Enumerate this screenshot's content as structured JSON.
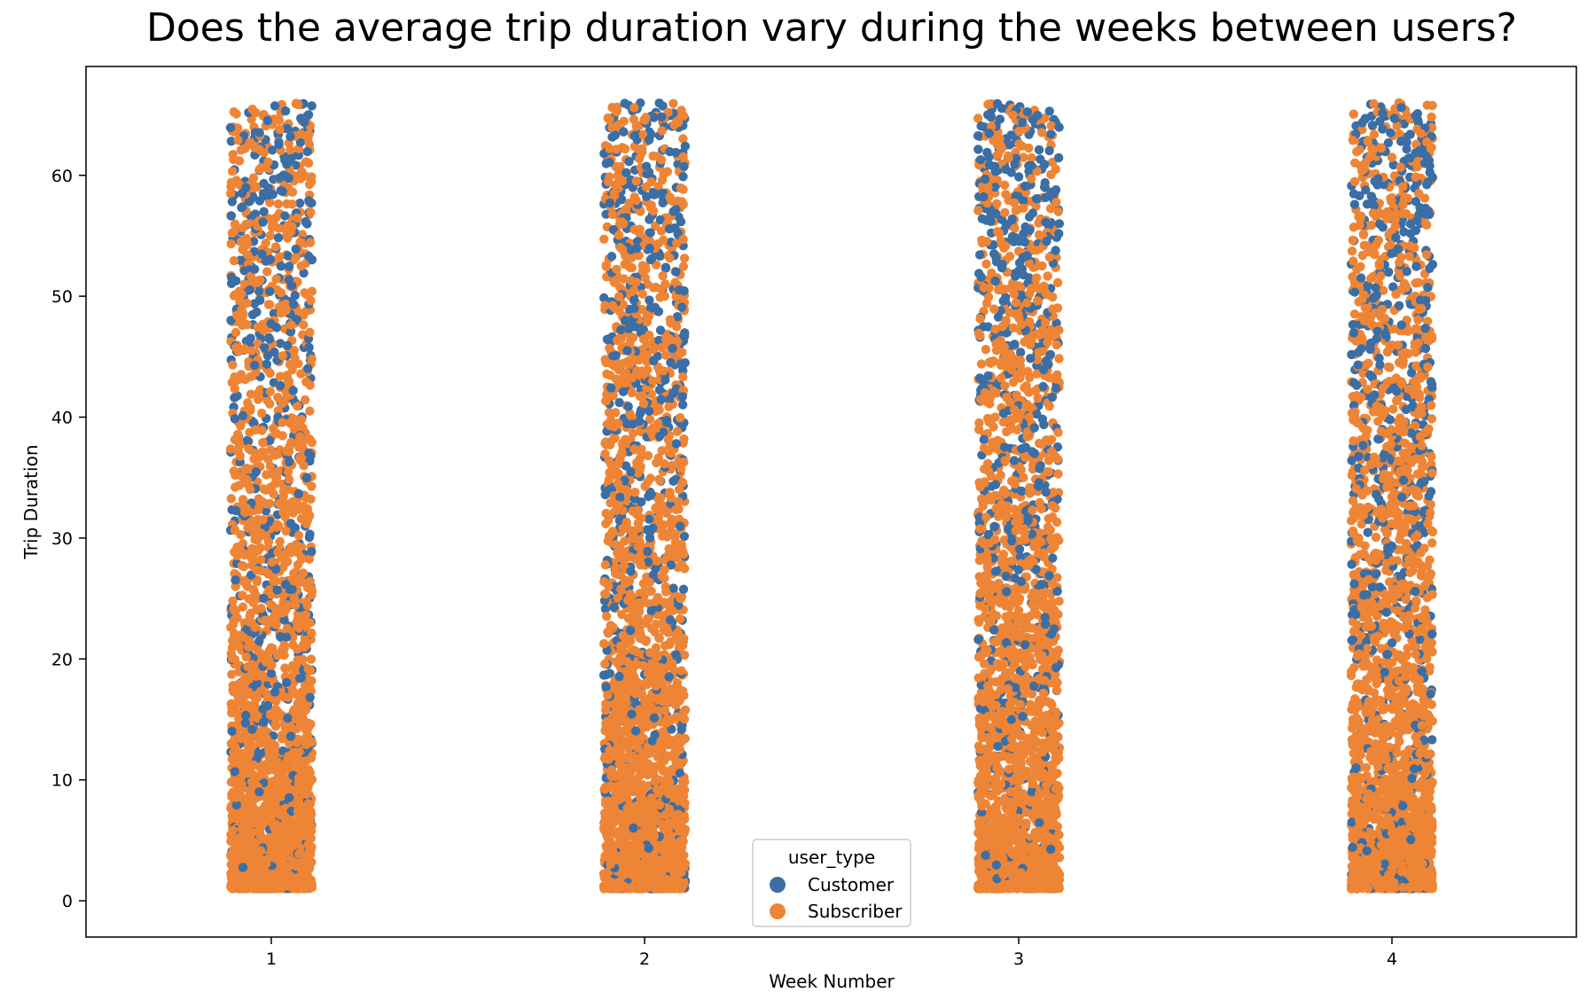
{
  "chart_data": {
    "type": "scatter",
    "subtype": "strip",
    "title": "Does the average trip duration vary during the weeks between users?",
    "xlabel": "Week Number",
    "ylabel": "Trip Duration",
    "categories": [
      "1",
      "2",
      "3",
      "4"
    ],
    "yticks": [
      "0",
      "10",
      "20",
      "30",
      "40",
      "50",
      "60"
    ],
    "ylim": [
      -3,
      69
    ],
    "y_range_of_points": [
      1,
      66
    ],
    "grid": false,
    "legend": {
      "title": "user_type",
      "placement": "lower center",
      "entries": [
        "Customer",
        "Subscriber"
      ]
    },
    "series": [
      {
        "name": "Customer",
        "color": "#3a6ea5"
      },
      {
        "name": "Subscriber",
        "color": "#ee8536"
      }
    ]
  }
}
